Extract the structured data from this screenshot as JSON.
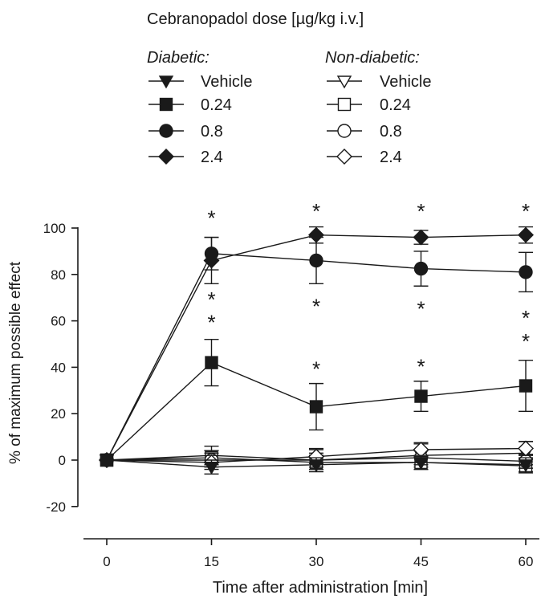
{
  "chart_data": {
    "type": "line",
    "legend_title": "Cebranopadol dose [µg/kg i.v.]",
    "legend_groups": [
      {
        "title": "Diabetic:",
        "filled": true
      },
      {
        "title": "Non-diabetic:",
        "filled": false
      }
    ],
    "xlabel": "Time after administration [min]",
    "ylabel": "% of maximum possible effect",
    "xticks": [
      0,
      15,
      30,
      45,
      60
    ],
    "yticks": [
      -20,
      0,
      20,
      40,
      60,
      80,
      100
    ],
    "xlim": [
      0,
      60
    ],
    "ylim": [
      -20,
      100
    ],
    "grid": false,
    "legend_position": "top",
    "series": [
      {
        "name": "Vehicle",
        "group": "Diabetic:",
        "marker": "triangle-down",
        "filled": true,
        "x": [
          0,
          15,
          30,
          45,
          60
        ],
        "y": [
          0,
          -3,
          -2,
          -1,
          -2
        ],
        "err": [
          0,
          3,
          3,
          3,
          3
        ]
      },
      {
        "name": "0.24",
        "group": "Diabetic:",
        "marker": "square",
        "filled": true,
        "x": [
          0,
          15,
          30,
          45,
          60
        ],
        "y": [
          0,
          42,
          23,
          27.5,
          32
        ],
        "err": [
          0,
          10,
          10,
          6.5,
          11
        ]
      },
      {
        "name": "0.8",
        "group": "Diabetic:",
        "marker": "circle",
        "filled": true,
        "x": [
          0,
          15,
          30,
          45,
          60
        ],
        "y": [
          0,
          89,
          86,
          82.5,
          81
        ],
        "err": [
          0,
          7,
          10,
          7.5,
          8.5
        ]
      },
      {
        "name": "2.4",
        "group": "Diabetic:",
        "marker": "diamond",
        "filled": true,
        "x": [
          0,
          15,
          30,
          45,
          60
        ],
        "y": [
          0,
          86,
          97,
          96,
          97
        ],
        "err": [
          0,
          10,
          3.5,
          3,
          3.5
        ]
      },
      {
        "name": "Vehicle",
        "group": "Non-diabetic:",
        "marker": "triangle-down",
        "filled": false,
        "x": [
          0,
          15,
          30,
          45,
          60
        ],
        "y": [
          0,
          2,
          0,
          2,
          3
        ],
        "err": [
          0,
          4,
          5,
          5,
          5
        ]
      },
      {
        "name": "0.24",
        "group": "Non-diabetic:",
        "marker": "square",
        "filled": false,
        "x": [
          0,
          15,
          30,
          45,
          60
        ],
        "y": [
          0,
          1,
          -1,
          -1,
          -2.5
        ],
        "err": [
          0,
          3,
          3,
          3,
          3
        ]
      },
      {
        "name": "0.8",
        "group": "Non-diabetic:",
        "marker": "circle",
        "filled": false,
        "x": [
          0,
          15,
          30,
          45,
          60
        ],
        "y": [
          0,
          0,
          0,
          1,
          -0.5
        ],
        "err": [
          0,
          3,
          3,
          3,
          3
        ]
      },
      {
        "name": "2.4",
        "group": "Non-diabetic:",
        "marker": "diamond",
        "filled": false,
        "x": [
          0,
          15,
          30,
          45,
          60
        ],
        "y": [
          0,
          -1,
          1.5,
          4.5,
          5
        ],
        "err": [
          0,
          3,
          3,
          3,
          3
        ]
      }
    ],
    "annotations": [
      {
        "text": "*",
        "x": 15,
        "y": 106
      },
      {
        "text": "*",
        "x": 15,
        "y": 71
      },
      {
        "text": "*",
        "x": 15,
        "y": 61
      },
      {
        "text": "*",
        "x": 30,
        "y": 109
      },
      {
        "text": "*",
        "x": 30,
        "y": 68
      },
      {
        "text": "*",
        "x": 30,
        "y": 41
      },
      {
        "text": "*",
        "x": 45,
        "y": 109
      },
      {
        "text": "*",
        "x": 45,
        "y": 67
      },
      {
        "text": "*",
        "x": 45,
        "y": 42
      },
      {
        "text": "*",
        "x": 60,
        "y": 109
      },
      {
        "text": "*",
        "x": 60,
        "y": 63
      },
      {
        "text": "*",
        "x": 60,
        "y": 53
      }
    ]
  }
}
